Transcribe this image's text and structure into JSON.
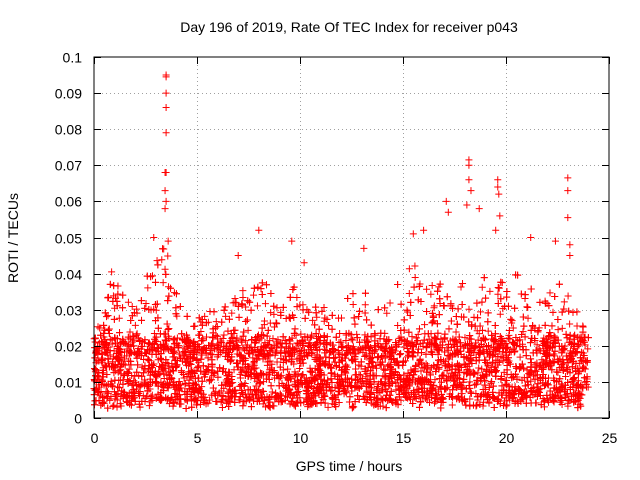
{
  "chart_data": {
    "type": "scatter",
    "title": "Day 196 of 2019, Rate Of TEC Index for receiver p043",
    "xlabel": "GPS time / hours",
    "ylabel": "ROTI / TECUs",
    "xlim": [
      0,
      25
    ],
    "ylim": [
      0,
      0.1
    ],
    "xticks": [
      0,
      5,
      10,
      15,
      20,
      25
    ],
    "xtick_labels": [
      "0",
      "5",
      "10",
      "15",
      "20",
      "25"
    ],
    "yticks": [
      0,
      0.01,
      0.02,
      0.03,
      0.04,
      0.05,
      0.06,
      0.07,
      0.08,
      0.09,
      0.1
    ],
    "ytick_labels": [
      "0",
      "0.01",
      "0.02",
      "0.03",
      "0.04",
      "0.05",
      "0.06",
      "0.07",
      "0.08",
      "0.09",
      "0.1"
    ],
    "grid": true,
    "legend": "none",
    "series_color": "#ff0000",
    "marker": "plus",
    "notable_points": [
      {
        "x": 3.5,
        "y": 0.095
      },
      {
        "x": 3.5,
        "y": 0.0945
      },
      {
        "x": 3.5,
        "y": 0.09
      },
      {
        "x": 3.5,
        "y": 0.086
      },
      {
        "x": 3.5,
        "y": 0.079
      },
      {
        "x": 3.45,
        "y": 0.068
      },
      {
        "x": 3.5,
        "y": 0.068
      },
      {
        "x": 3.45,
        "y": 0.063
      },
      {
        "x": 3.5,
        "y": 0.06
      },
      {
        "x": 3.45,
        "y": 0.058
      },
      {
        "x": 2.9,
        "y": 0.05
      },
      {
        "x": 3.6,
        "y": 0.049
      },
      {
        "x": 7.0,
        "y": 0.045
      },
      {
        "x": 8.0,
        "y": 0.052
      },
      {
        "x": 9.6,
        "y": 0.049
      },
      {
        "x": 10.2,
        "y": 0.043
      },
      {
        "x": 13.1,
        "y": 0.047
      },
      {
        "x": 16.0,
        "y": 0.052
      },
      {
        "x": 15.5,
        "y": 0.051
      },
      {
        "x": 17.1,
        "y": 0.06
      },
      {
        "x": 17.2,
        "y": 0.057
      },
      {
        "x": 18.2,
        "y": 0.0715
      },
      {
        "x": 18.2,
        "y": 0.07
      },
      {
        "x": 18.2,
        "y": 0.066
      },
      {
        "x": 18.3,
        "y": 0.063
      },
      {
        "x": 18.1,
        "y": 0.059
      },
      {
        "x": 18.7,
        "y": 0.058
      },
      {
        "x": 19.6,
        "y": 0.066
      },
      {
        "x": 19.6,
        "y": 0.064
      },
      {
        "x": 19.65,
        "y": 0.062
      },
      {
        "x": 19.7,
        "y": 0.056
      },
      {
        "x": 19.5,
        "y": 0.052
      },
      {
        "x": 21.2,
        "y": 0.05
      },
      {
        "x": 22.4,
        "y": 0.049
      },
      {
        "x": 23.0,
        "y": 0.0665
      },
      {
        "x": 23.0,
        "y": 0.063
      },
      {
        "x": 23.0,
        "y": 0.0555
      },
      {
        "x": 23.1,
        "y": 0.048
      },
      {
        "x": 23.1,
        "y": 0.045
      }
    ],
    "activity_profile": [
      {
        "x": 0.0,
        "peak": 0.024
      },
      {
        "x": 0.5,
        "peak": 0.03
      },
      {
        "x": 0.8,
        "peak": 0.044
      },
      {
        "x": 1.2,
        "peak": 0.036
      },
      {
        "x": 1.7,
        "peak": 0.034
      },
      {
        "x": 2.2,
        "peak": 0.03
      },
      {
        "x": 2.6,
        "peak": 0.04
      },
      {
        "x": 3.0,
        "peak": 0.044
      },
      {
        "x": 3.5,
        "peak": 0.05
      },
      {
        "x": 4.0,
        "peak": 0.036
      },
      {
        "x": 4.5,
        "peak": 0.03
      },
      {
        "x": 5.0,
        "peak": 0.028
      },
      {
        "x": 5.5,
        "peak": 0.03
      },
      {
        "x": 6.0,
        "peak": 0.03
      },
      {
        "x": 6.5,
        "peak": 0.032
      },
      {
        "x": 7.0,
        "peak": 0.04
      },
      {
        "x": 7.5,
        "peak": 0.032
      },
      {
        "x": 8.0,
        "peak": 0.04
      },
      {
        "x": 8.5,
        "peak": 0.036
      },
      {
        "x": 9.0,
        "peak": 0.03
      },
      {
        "x": 9.5,
        "peak": 0.038
      },
      {
        "x": 10.0,
        "peak": 0.034
      },
      {
        "x": 10.5,
        "peak": 0.03
      },
      {
        "x": 11.0,
        "peak": 0.034
      },
      {
        "x": 11.5,
        "peak": 0.032
      },
      {
        "x": 12.0,
        "peak": 0.034
      },
      {
        "x": 12.5,
        "peak": 0.036
      },
      {
        "x": 13.0,
        "peak": 0.04
      },
      {
        "x": 13.5,
        "peak": 0.036
      },
      {
        "x": 14.0,
        "peak": 0.036
      },
      {
        "x": 14.5,
        "peak": 0.036
      },
      {
        "x": 15.0,
        "peak": 0.04
      },
      {
        "x": 15.5,
        "peak": 0.044
      },
      {
        "x": 16.0,
        "peak": 0.042
      },
      {
        "x": 16.5,
        "peak": 0.036
      },
      {
        "x": 17.0,
        "peak": 0.042
      },
      {
        "x": 17.5,
        "peak": 0.03
      },
      {
        "x": 18.0,
        "peak": 0.04
      },
      {
        "x": 18.5,
        "peak": 0.032
      },
      {
        "x": 19.0,
        "peak": 0.04
      },
      {
        "x": 19.5,
        "peak": 0.044
      },
      {
        "x": 20.0,
        "peak": 0.046
      },
      {
        "x": 20.5,
        "peak": 0.04
      },
      {
        "x": 21.0,
        "peak": 0.04
      },
      {
        "x": 21.5,
        "peak": 0.032
      },
      {
        "x": 22.0,
        "peak": 0.034
      },
      {
        "x": 22.5,
        "peak": 0.04
      },
      {
        "x": 23.0,
        "peak": 0.034
      },
      {
        "x": 23.5,
        "peak": 0.032
      },
      {
        "x": 24.0,
        "peak": 0.028
      }
    ],
    "typical_range": [
      0.004,
      0.022
    ],
    "time_span": [
      0.0,
      24.0
    ]
  }
}
